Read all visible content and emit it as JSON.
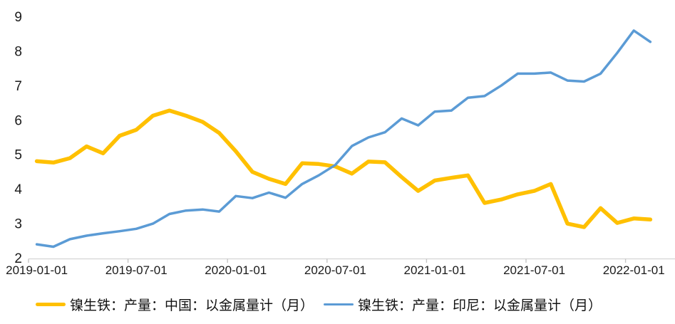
{
  "chart_data": {
    "type": "line",
    "title": "",
    "xlabel": "",
    "ylabel": "",
    "ylim": [
      2,
      9
    ],
    "yticks": [
      2,
      3,
      4,
      5,
      6,
      7,
      8,
      9
    ],
    "xtick_labels": [
      "2019-01-01",
      "2019-07-01",
      "2020-01-01",
      "2020-07-01",
      "2021-01-01",
      "2021-07-01",
      "2022-01-01"
    ],
    "grid": false,
    "legend_position": "bottom",
    "axis_color": "#d9d9d9",
    "tick_color": "#c6c6c6",
    "text_color": "#1a1a1a",
    "x": [
      "2019-01",
      "2019-02",
      "2019-03",
      "2019-04",
      "2019-05",
      "2019-06",
      "2019-07",
      "2019-08",
      "2019-09",
      "2019-10",
      "2019-11",
      "2019-12",
      "2020-01",
      "2020-02",
      "2020-03",
      "2020-04",
      "2020-05",
      "2020-06",
      "2020-07",
      "2020-08",
      "2020-09",
      "2020-10",
      "2020-11",
      "2020-12",
      "2021-01",
      "2021-02",
      "2021-03",
      "2021-04",
      "2021-05",
      "2021-06",
      "2021-07",
      "2021-08",
      "2021-09",
      "2021-10",
      "2021-11",
      "2021-12",
      "2022-01",
      "2022-02"
    ],
    "series": [
      {
        "name": "镍生铁：产量：中国：以金属量计（月）",
        "color": "#FFC000",
        "stroke_width": 5.5,
        "values": [
          4.81,
          4.77,
          4.9,
          5.24,
          5.04,
          5.55,
          5.72,
          6.13,
          6.28,
          6.13,
          5.95,
          5.63,
          5.1,
          4.5,
          4.3,
          4.15,
          4.75,
          4.73,
          4.66,
          4.45,
          4.8,
          4.78,
          4.35,
          3.95,
          4.25,
          4.33,
          4.4,
          3.6,
          3.7,
          3.85,
          3.95,
          4.15,
          3.0,
          2.9,
          3.45,
          3.02,
          3.15,
          3.12
        ]
      },
      {
        "name": "镍生铁：产量：印尼：以金属量计（月）",
        "color": "#5B9BD5",
        "stroke_width": 3.5,
        "values": [
          2.4,
          2.33,
          2.55,
          2.65,
          2.72,
          2.78,
          2.85,
          3.0,
          3.28,
          3.38,
          3.41,
          3.35,
          3.8,
          3.74,
          3.9,
          3.75,
          4.15,
          4.4,
          4.7,
          5.25,
          5.5,
          5.65,
          6.05,
          5.85,
          6.25,
          6.28,
          6.65,
          6.7,
          7.0,
          7.35,
          7.35,
          7.38,
          7.15,
          7.12,
          7.35,
          7.95,
          8.6,
          8.27
        ]
      }
    ]
  }
}
